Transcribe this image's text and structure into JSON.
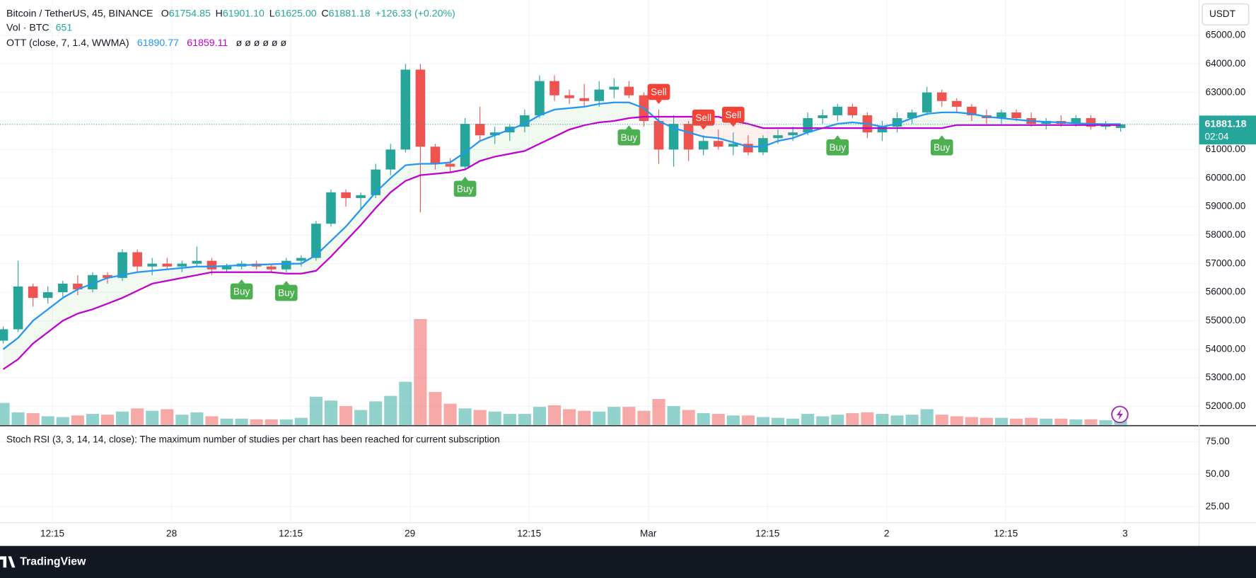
{
  "legend": {
    "symbol": "Bitcoin / TetherUS, 45, BINANCE",
    "ohlc": [
      {
        "label": "O",
        "value": "61754.85"
      },
      {
        "label": "H",
        "value": "61901.10"
      },
      {
        "label": "L",
        "value": "61625.00"
      },
      {
        "label": "C",
        "value": "61881.18"
      }
    ],
    "change": "+126.33 (+0.20%)",
    "ott_label": "OTT (close, 7, 1.4, WWMA)",
    "ott_extra": "ø ø ø ø ø ø"
  },
  "price_axis": {
    "currency": "USDT",
    "countdown": "02:04"
  },
  "footer": "TradingView",
  "chart_data": [
    {
      "type": "candlestick",
      "ylim": [
        51350,
        66240
      ],
      "yticks": [
        {
          "value": 52000,
          "label": "52000.00"
        },
        {
          "value": 53000,
          "label": "53000.00"
        },
        {
          "value": 54000,
          "label": "54000.00"
        },
        {
          "value": 55000,
          "label": "55000.00"
        },
        {
          "value": 56000,
          "label": "56000.00"
        },
        {
          "value": 57000,
          "label": "57000.00"
        },
        {
          "value": 58000,
          "label": "58000.00"
        },
        {
          "value": 59000,
          "label": "59000.00"
        },
        {
          "value": 60000,
          "label": "60000.00"
        },
        {
          "value": 61000,
          "label": "61000.00"
        },
        {
          "value": 62000,
          "label": "62000.00"
        },
        {
          "value": 63000,
          "label": "63000.00"
        },
        {
          "value": 64000,
          "label": "64000.00"
        },
        {
          "value": 65000,
          "label": "65000.00"
        }
      ],
      "xticks": [
        {
          "value": 3.3,
          "label": "12:15"
        },
        {
          "value": 11.3,
          "label": "28"
        },
        {
          "value": 19.3,
          "label": "12:15"
        },
        {
          "value": 27.3,
          "label": "29"
        },
        {
          "value": 35.3,
          "label": "12:15"
        },
        {
          "value": 43.3,
          "label": "Mar"
        },
        {
          "value": 51.3,
          "label": "12:15"
        },
        {
          "value": 59.3,
          "label": "2"
        },
        {
          "value": 67.3,
          "label": "12:15"
        },
        {
          "value": 75.3,
          "label": "3"
        }
      ],
      "grid": true,
      "up_color": "#26a69a",
      "down_color": "#ef5350",
      "open": [
        54300,
        54700,
        56200,
        55800,
        56000,
        56300,
        56100,
        56600,
        56500,
        57400,
        56900,
        57000,
        56900,
        57000,
        57100,
        56800,
        56900,
        57000,
        56900,
        56800,
        57100,
        57200,
        58400,
        59500,
        59300,
        59400,
        60300,
        61000,
        63800,
        61100,
        60500,
        60400,
        61900,
        61500,
        61600,
        61800,
        62200,
        63400,
        62900,
        62800,
        62700,
        63100,
        63200,
        62900,
        62000,
        61000,
        61900,
        61000,
        61300,
        61100,
        61200,
        60900,
        61400,
        61500,
        61600,
        62100,
        62200,
        62500,
        62200,
        61600,
        61800,
        62100,
        62300,
        63000,
        62700,
        62500,
        62200,
        62100,
        62300,
        62100,
        61900,
        62000,
        61900,
        62100,
        61800,
        61754.85
      ],
      "high": [
        54800,
        57100,
        56300,
        56200,
        56400,
        56600,
        56700,
        56700,
        57500,
        57500,
        57200,
        57200,
        57100,
        57600,
        57200,
        57000,
        57100,
        57100,
        57000,
        57200,
        57300,
        58500,
        59600,
        59600,
        59500,
        60500,
        61200,
        64000,
        64000,
        61200,
        60700,
        62100,
        62500,
        61800,
        61900,
        62400,
        63600,
        63600,
        63100,
        63300,
        63400,
        63500,
        63400,
        63000,
        62400,
        62200,
        62000,
        61500,
        61700,
        61600,
        61500,
        61500,
        61700,
        61800,
        62300,
        62400,
        62600,
        62600,
        62300,
        62000,
        62300,
        62400,
        63200,
        63100,
        62800,
        62600,
        62400,
        62400,
        62400,
        62300,
        62100,
        62200,
        62200,
        62200,
        62000,
        61901.1
      ],
      "low": [
        54200,
        54600,
        55500,
        55600,
        55800,
        55900,
        56000,
        56300,
        56400,
        56700,
        56600,
        56800,
        56700,
        56900,
        56600,
        56700,
        56800,
        56800,
        56700,
        56700,
        56900,
        57100,
        58300,
        59000,
        58900,
        59300,
        60100,
        60900,
        58800,
        60300,
        60200,
        60300,
        61300,
        61200,
        61300,
        61600,
        62100,
        62700,
        62600,
        62500,
        62500,
        62800,
        62800,
        61800,
        60500,
        60400,
        60600,
        60800,
        61000,
        60800,
        60800,
        60800,
        61200,
        61300,
        61500,
        61900,
        62000,
        62100,
        61400,
        61300,
        61600,
        61900,
        62200,
        62500,
        62300,
        62000,
        61900,
        61900,
        62000,
        61800,
        61700,
        61800,
        61800,
        61700,
        61700,
        61625
      ],
      "close": [
        54700,
        56200,
        55800,
        56000,
        56300,
        56100,
        56600,
        56500,
        57400,
        56900,
        57000,
        56900,
        57000,
        57100,
        56800,
        56900,
        57000,
        56900,
        56800,
        57100,
        57200,
        58400,
        59500,
        59300,
        59400,
        60300,
        61000,
        63800,
        61100,
        60500,
        60400,
        61900,
        61500,
        61600,
        61800,
        62200,
        63400,
        62900,
        62800,
        62700,
        63100,
        63200,
        62900,
        62000,
        61000,
        61900,
        61000,
        61300,
        61100,
        61200,
        60900,
        61400,
        61500,
        61600,
        62100,
        62200,
        62500,
        62200,
        61600,
        61800,
        62100,
        62300,
        63000,
        62700,
        62500,
        62200,
        62100,
        62300,
        62100,
        61900,
        62000,
        61900,
        62100,
        61800,
        61900,
        61881.18
      ],
      "volume": {
        "name": "Vol · BTC",
        "up_color": "#26a69a",
        "down_color": "#ef5350",
        "values": [
          2800,
          1600,
          1500,
          1100,
          1000,
          1200,
          1400,
          1300,
          1700,
          2100,
          1800,
          2000,
          1300,
          1600,
          1100,
          800,
          800,
          700,
          700,
          700,
          900,
          3600,
          3100,
          2400,
          1900,
          3000,
          3700,
          5500,
          13500,
          4200,
          2700,
          2100,
          1900,
          1700,
          1400,
          1400,
          2300,
          2500,
          2000,
          1800,
          1700,
          2300,
          2300,
          1800,
          3300,
          2400,
          1900,
          1500,
          1400,
          1200,
          1200,
          1000,
          900,
          800,
          1400,
          1100,
          1300,
          1500,
          1600,
          1400,
          1200,
          1300,
          2000,
          1300,
          1100,
          1000,
          900,
          900,
          800,
          900,
          800,
          800,
          700,
          700,
          600,
          651
        ]
      },
      "lines": [
        {
          "color": "#2196f3",
          "values": [
            54000,
            54400,
            55000,
            55400,
            55800,
            56100,
            56300,
            56500,
            56600,
            56700,
            56750,
            56800,
            56850,
            56900,
            56900,
            56920,
            56950,
            56960,
            56980,
            57000,
            57000,
            57300,
            57800,
            58300,
            58900,
            59500,
            60000,
            60450,
            60500,
            60500,
            60550,
            60900,
            61300,
            61500,
            61700,
            61900,
            62200,
            62400,
            62450,
            62500,
            62600,
            62650,
            62650,
            62450,
            62000,
            61750,
            61600,
            61450,
            61400,
            61250,
            61100,
            61100,
            61300,
            61400,
            61600,
            61750,
            61900,
            61950,
            61900,
            61800,
            61900,
            62100,
            62250,
            62300,
            62300,
            62250,
            62150,
            62100,
            62050,
            62000,
            61970,
            61950,
            61920,
            61900,
            61890,
            61890.77
          ]
        },
        {
          "color": "#c000d0",
          "values": [
            53300,
            53650,
            54200,
            54600,
            55000,
            55250,
            55400,
            55600,
            55800,
            56050,
            56300,
            56400,
            56500,
            56600,
            56700,
            56700,
            56700,
            56700,
            56700,
            56650,
            56650,
            56750,
            57250,
            57800,
            58350,
            58950,
            59500,
            59900,
            60100,
            60150,
            60200,
            60300,
            60600,
            60750,
            60850,
            60950,
            61200,
            61450,
            61700,
            61850,
            61950,
            62000,
            62100,
            62150,
            62150,
            62150,
            62150,
            62150,
            62150,
            62000,
            61900,
            61750,
            61750,
            61750,
            61750,
            61750,
            61750,
            61750,
            61750,
            61750,
            61750,
            61750,
            61750,
            61750,
            61859.11,
            61859.11,
            61859.11,
            61859.11,
            61859.11,
            61859.11,
            61859.11,
            61859.11,
            61859.11,
            61859.11,
            61859.11,
            61859.11
          ]
        }
      ],
      "fill_up_color": "#4caf50",
      "fill_down_color": "#f44336",
      "signals": [
        {
          "index": 16,
          "label": "Buy",
          "color": "#4caf50"
        },
        {
          "index": 19,
          "label": "Buy",
          "color": "#4caf50"
        },
        {
          "index": 31,
          "label": "Buy",
          "color": "#4caf50"
        },
        {
          "index": 42,
          "label": "Buy",
          "color": "#4caf50"
        },
        {
          "index": 44,
          "label": "Sell",
          "color": "#f44336"
        },
        {
          "index": 47,
          "label": "Sell",
          "color": "#f44336"
        },
        {
          "index": 49,
          "label": "Sell",
          "color": "#f44336"
        },
        {
          "index": 56,
          "label": "Buy",
          "color": "#4caf50"
        },
        {
          "index": 63,
          "label": "Buy",
          "color": "#4caf50"
        }
      ]
    },
    {
      "type": "indicator",
      "title": "Stoch RSI (3, 3, 14, 14, close): The maximum number of studies per chart has been reached for current subscription",
      "ylim": [
        12.7,
        86.7
      ],
      "yticks": [
        {
          "value": 75,
          "label": "75.00"
        },
        {
          "value": 50,
          "label": "50.00"
        },
        {
          "value": 25,
          "label": "25.00"
        }
      ],
      "grid": true
    }
  ]
}
